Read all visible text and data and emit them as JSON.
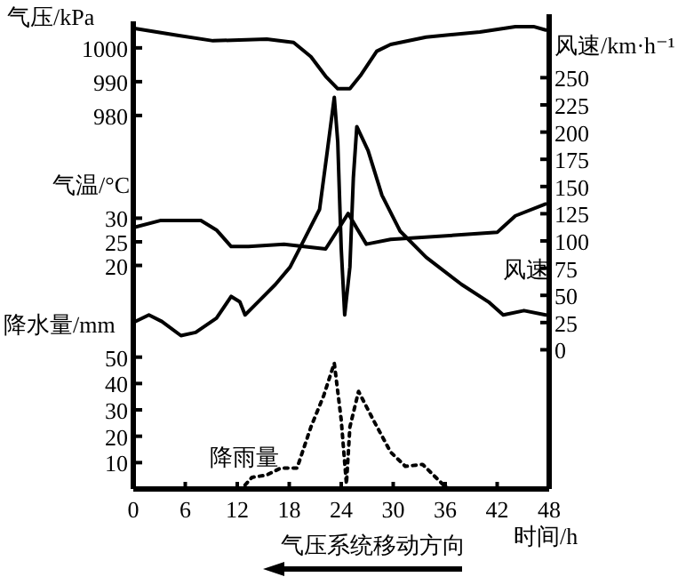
{
  "chart_data": [
    {
      "type": "line",
      "xlabel": "时间/h",
      "ylabel": "气压/kPa",
      "y2label": "风速/km·h⁻¹",
      "y3label": "气温/°C",
      "xlim": [
        0,
        48
      ],
      "xticks": [
        0,
        6,
        12,
        18,
        24,
        30,
        36,
        42,
        48
      ],
      "ylim": [
        869.5,
        1006.8
      ],
      "yticks": [
        1000,
        990,
        980
      ],
      "y2lim": [
        -127.9,
        298.5
      ],
      "y2ticks": [
        0,
        25,
        50,
        75,
        100,
        125,
        150,
        175,
        200,
        225,
        250
      ],
      "y3lim": [
        -27.3,
        70.9
      ],
      "y3ticks": [
        30,
        25,
        20
      ],
      "series": [
        {
          "type": "line",
          "axis": "y",
          "color": "#000000",
          "x": [
            0,
            5.1,
            9.2,
            15.4,
            18.5,
            20.5,
            22.2,
            23.6,
            25,
            26.3,
            28.1,
            29.7,
            33.8,
            40,
            44.1,
            46.2,
            47.6
          ],
          "values": [
            1005.8,
            1003.7,
            1002.1,
            1002.6,
            1001.6,
            997.4,
            991.6,
            987.9,
            987.9,
            992.1,
            999,
            1001,
            1003.2,
            1004.7,
            1006.3,
            1006.3,
            1005.3
          ]
        },
        {
          "type": "line",
          "axis": "y3",
          "color": "#000000",
          "x": [
            0,
            3.1,
            7.8,
            9.6,
            11.3,
            13.3,
            17.4,
            22.2,
            23.6,
            24.8,
            25.6,
            26.9,
            29.7,
            42,
            44.1,
            47.6
          ],
          "values": [
            28,
            29.5,
            29.5,
            27.5,
            24,
            24,
            24.5,
            23.5,
            27.5,
            31,
            28.5,
            24.5,
            25.5,
            27,
            30.5,
            33
          ]
        },
        {
          "type": "line",
          "axis": "y2",
          "name": "风速",
          "color": "#000000",
          "x": [
            0,
            1.8,
            3.3,
            5.5,
            7.2,
            9.6,
            11.3,
            12.3,
            12.9,
            14.4,
            16.4,
            18.1,
            19.9,
            21.5,
            22.4,
            23.2,
            23.6,
            24,
            24.4,
            25,
            25.4,
            25.8,
            27.1,
            28.7,
            30.8,
            33.8,
            37.9,
            41,
            42.7,
            45.1,
            47.6
          ],
          "values": [
            25,
            32,
            26,
            13,
            16,
            29,
            49,
            44,
            32,
            44,
            60,
            76,
            104,
            129,
            183,
            232,
            191,
            93,
            32,
            76,
            158,
            205,
            183,
            142,
            109,
            85,
            60,
            44,
            32,
            36,
            32
          ]
        }
      ],
      "annotations": [
        "气压系统移动方向"
      ]
    },
    {
      "type": "line",
      "ylabel": "降水量/mm",
      "xlim": [
        0,
        48
      ],
      "ylim": [
        0,
        176
      ],
      "yticks": [
        50,
        40,
        30,
        20,
        10
      ],
      "tick_labels": "y",
      "series": [
        {
          "type": "line",
          "name": "降雨量",
          "color": "#000000",
          "line_style": "dotted",
          "x": [
            12.9,
            13.7,
            15.4,
            17,
            18.9,
            20.5,
            22,
            23.2,
            24,
            24.6,
            25,
            26,
            27.7,
            29.7,
            31.4,
            33.4,
            35.9,
            36.5
          ],
          "values": [
            1.5,
            4.4,
            5.3,
            7.9,
            7.9,
            23.5,
            35.6,
            47.7,
            26.2,
            1.9,
            23.5,
            37,
            26.2,
            14,
            8.6,
            9.3,
            1.2,
            0
          ]
        }
      ]
    }
  ]
}
